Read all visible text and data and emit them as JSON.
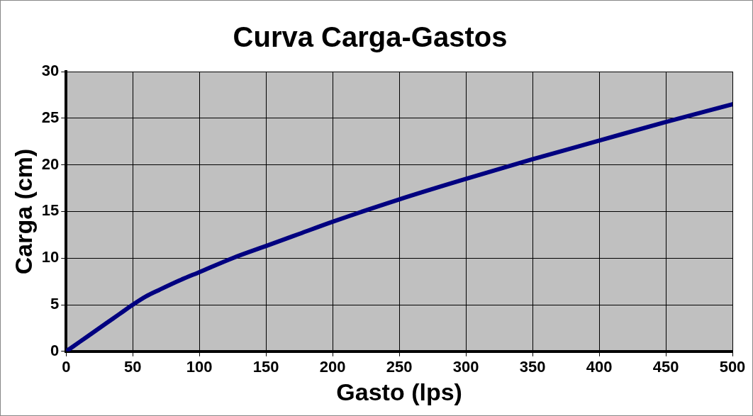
{
  "chart_data": {
    "type": "line",
    "title": "Curva Carga-Gastos",
    "xlabel": "Gasto (lps)",
    "ylabel": "Carga (cm)",
    "series": [
      {
        "color": "#000080",
        "x": [
          0,
          10,
          20,
          30,
          40,
          50,
          60,
          70,
          85,
          100,
          125,
          150,
          175,
          200,
          250,
          300,
          350,
          400,
          450,
          500
        ],
        "values": [
          0,
          1.0,
          2.0,
          3.0,
          4.0,
          5.0,
          5.9,
          6.6,
          7.6,
          8.5,
          10.0,
          11.3,
          12.6,
          13.9,
          16.3,
          18.5,
          20.6,
          22.6,
          24.6,
          26.5
        ]
      }
    ],
    "xlim": [
      0,
      500
    ],
    "xticks": [
      0,
      50,
      100,
      150,
      200,
      250,
      300,
      350,
      400,
      450,
      500
    ],
    "ylim": [
      0,
      30
    ],
    "yticks": [
      0,
      5,
      10,
      15,
      20,
      25,
      30
    ],
    "grid": true,
    "legend": false,
    "marker": "none",
    "line_style": "solid"
  }
}
